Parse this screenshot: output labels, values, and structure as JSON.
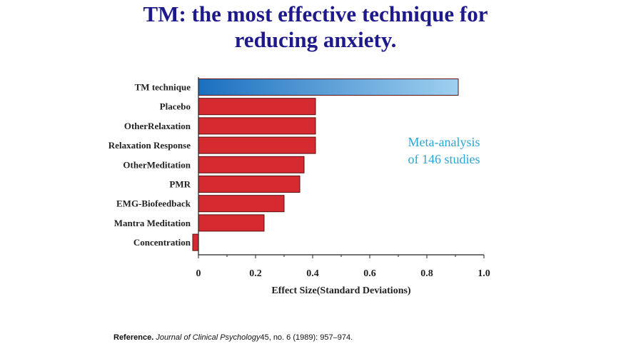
{
  "title_lines": [
    "TM: the most effective technique for",
    "reducing anxiety."
  ],
  "note_lines": [
    "Meta-analysis",
    "of 146 studies"
  ],
  "reference": {
    "label": "Reference.",
    "journal": "Journal of Clinical Psychology",
    "rest": "45, no. 6 (1989): 957–974."
  },
  "chart_data": {
    "type": "bar",
    "orientation": "horizontal",
    "categories": [
      "TM technique",
      "Placebo",
      "OtherRelaxation",
      "Relaxation Response",
      "OtherMeditation",
      "PMR",
      "EMG-Biofeedback",
      "Mantra Meditation",
      "Concentration"
    ],
    "values": [
      0.91,
      0.41,
      0.41,
      0.41,
      0.37,
      0.355,
      0.3,
      0.23,
      -0.02
    ],
    "xticks": [
      "0",
      "0.2",
      "0.4",
      "0.6",
      "0.8",
      "1.0"
    ],
    "xtick_values": [
      0,
      0.2,
      0.4,
      0.6,
      0.8,
      1.0
    ],
    "xlim": [
      -0.03,
      1.0
    ],
    "xlabel": "Effect Size(Standard Deviations)",
    "title": "",
    "ylabel": "",
    "colors": {
      "highlight_start": "#1a6fbf",
      "highlight_end": "#9fd0f0",
      "bar": "#d42a30",
      "bar_stroke": "#5a1010"
    }
  }
}
